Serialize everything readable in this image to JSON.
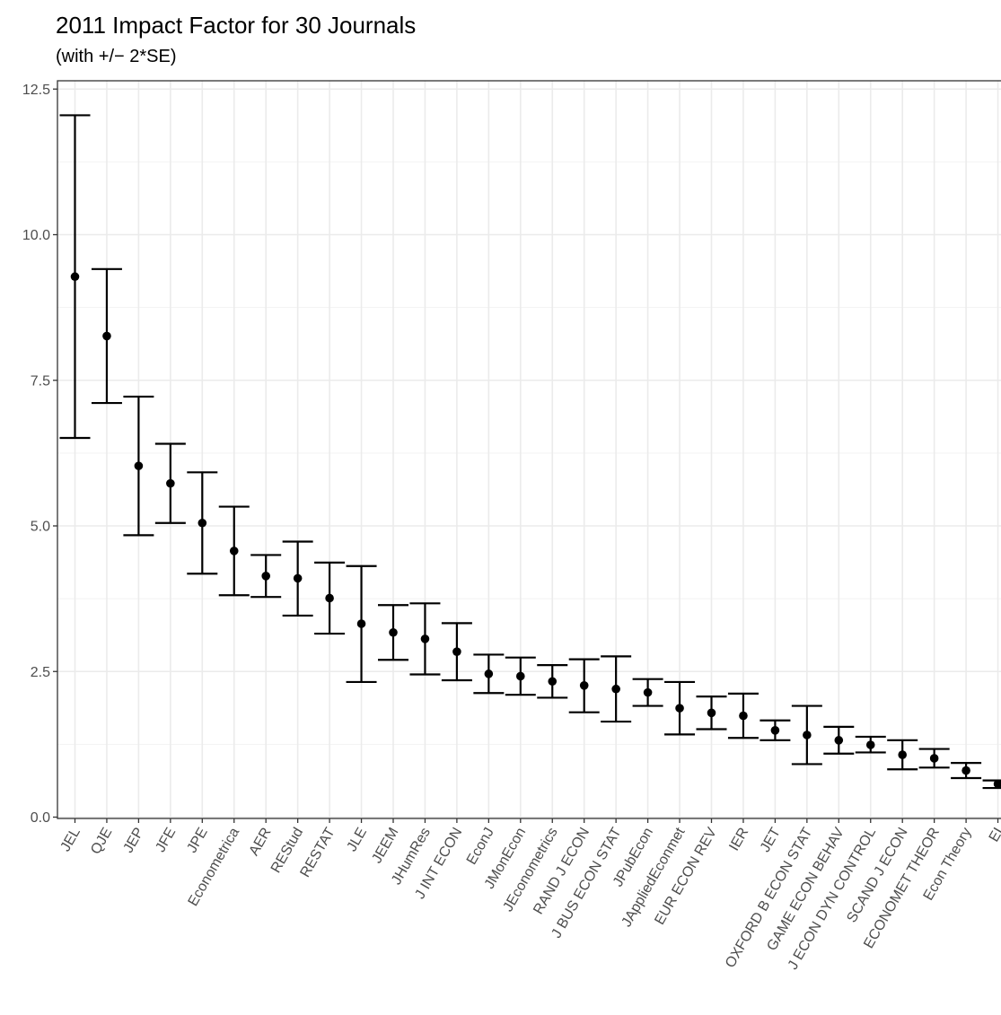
{
  "chart_data": {
    "type": "scatter",
    "title": "2011 Impact Factor for 30 Journals",
    "subtitle": "(with +/− 2*SE)",
    "xlabel": "",
    "ylabel": "",
    "ylim": [
      0,
      12.5
    ],
    "yticks": [
      "0.0",
      "2.5",
      "5.0",
      "7.5",
      "10.0",
      "12.5"
    ],
    "grid": true,
    "categories": [
      "JEL",
      "QJE",
      "JEP",
      "JFE",
      "JPE",
      "Econometrica",
      "AER",
      "REStud",
      "RESTAT",
      "JLE",
      "JEEM",
      "JHumRes",
      "J INT ECON",
      "EconJ",
      "JMonEcon",
      "JEconometrics",
      "RAND J ECON",
      "J BUS ECON STAT",
      "JPubEcon",
      "JAppliedEconmet",
      "EUR ECON REV",
      "IER",
      "JET",
      "OXFORD B ECON STAT",
      "GAME ECON BEHAV",
      "J ECON DYN CONTROL",
      "SCAND J ECON",
      "ECONOMET THEOR",
      "Econ Theory",
      "EI"
    ],
    "series": [
      {
        "values": [
          9.28,
          8.26,
          6.03,
          5.73,
          5.05,
          4.57,
          4.14,
          4.1,
          3.76,
          3.32,
          3.17,
          3.06,
          2.84,
          2.46,
          2.42,
          2.33,
          2.26,
          2.2,
          2.14,
          1.87,
          1.79,
          1.74,
          1.49,
          1.41,
          1.32,
          1.24,
          1.07,
          1.01,
          0.8,
          0.57
        ],
        "lower": [
          6.51,
          7.11,
          4.84,
          5.05,
          4.18,
          3.81,
          3.78,
          3.46,
          3.15,
          2.32,
          2.7,
          2.45,
          2.35,
          2.13,
          2.1,
          2.05,
          1.8,
          1.64,
          1.91,
          1.42,
          1.51,
          1.36,
          1.32,
          0.91,
          1.09,
          1.11,
          0.82,
          0.85,
          0.67,
          0.5
        ],
        "upper": [
          12.05,
          9.41,
          7.22,
          6.41,
          5.92,
          5.33,
          4.5,
          4.73,
          4.37,
          4.31,
          3.64,
          3.67,
          3.33,
          2.79,
          2.74,
          2.61,
          2.71,
          2.76,
          2.37,
          2.32,
          2.07,
          2.12,
          1.66,
          1.91,
          1.55,
          1.38,
          1.32,
          1.17,
          0.93,
          0.63
        ]
      }
    ],
    "colors": {
      "point": "#000000",
      "grid": "#ebebeb",
      "border": "#333333",
      "tick_text": "#4d4d4d"
    }
  }
}
